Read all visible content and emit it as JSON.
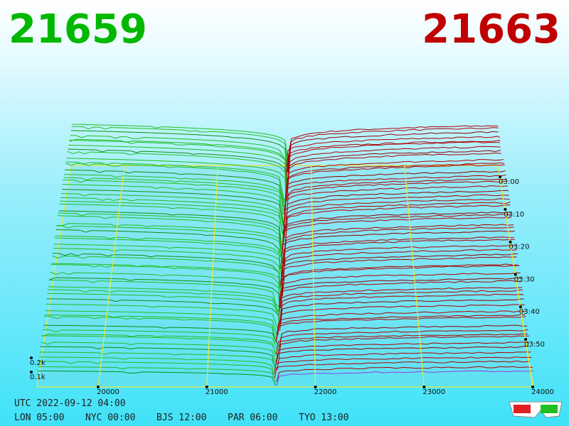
{
  "header": {
    "bid": 21659,
    "ask": 21663
  },
  "price_axis": {
    "ticks": [
      20000,
      21000,
      22000,
      23000,
      24000
    ]
  },
  "time_axis": {
    "ticks": [
      "03:00",
      "03:10",
      "03:20",
      "03:30",
      "03:40",
      "03:50"
    ]
  },
  "depth_axis": {
    "ticks": [
      "0.2k",
      "0.1k"
    ]
  },
  "footer": {
    "utc": "UTC 2022-09-12 04:00",
    "clocks": [
      "LON 05:00",
      "NYC 00:00",
      "BJS 12:00",
      "PAR 06:00",
      "TYO 13:00"
    ]
  }
}
